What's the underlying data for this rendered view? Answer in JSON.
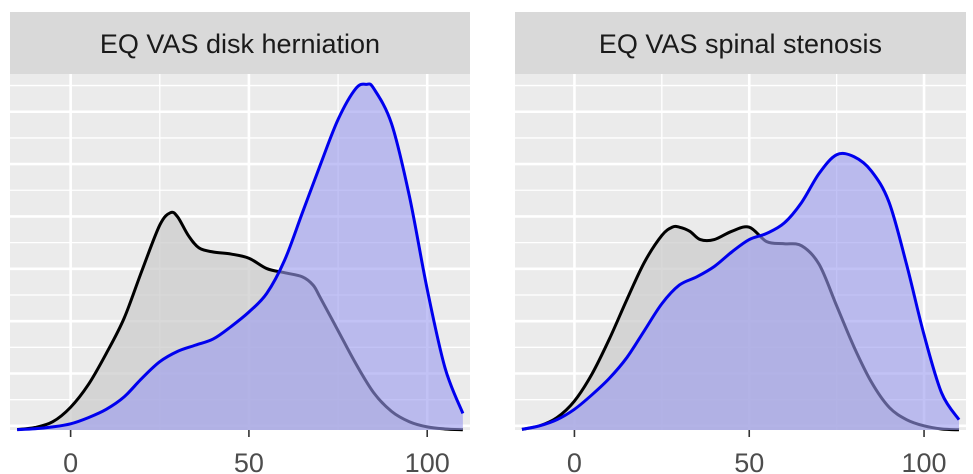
{
  "chart_data": [
    {
      "type": "area",
      "title": "EQ VAS disk herniation",
      "xlabel": "",
      "ylabel": "",
      "xlim": [
        -17,
        112
      ],
      "ylim": [
        0,
        0.0172
      ],
      "x_ticks": [
        0,
        50,
        100
      ],
      "x_tick_labels": [
        "0",
        "50",
        "100"
      ],
      "grid": true,
      "legend": "none",
      "series": [
        {
          "color": "#000000",
          "fill": "#cccccc",
          "x": [
            -15,
            -10,
            -5,
            0,
            5,
            10,
            15,
            20,
            25,
            28,
            30,
            33,
            36,
            40,
            45,
            50,
            55,
            60,
            65,
            68,
            70,
            75,
            80,
            85,
            90,
            95,
            100,
            105,
            110
          ],
          "y": [
            2e-05,
            0.00012,
            0.0004,
            0.0011,
            0.0022,
            0.0037,
            0.0054,
            0.0077,
            0.0099,
            0.0105,
            0.0103,
            0.0094,
            0.0088,
            0.0086,
            0.0085,
            0.0083,
            0.0078,
            0.0076,
            0.0074,
            0.007,
            0.0064,
            0.0048,
            0.0032,
            0.0018,
            0.0009,
            0.0004,
            0.00015,
            5e-05,
            1e-05
          ]
        },
        {
          "color": "#0000ee",
          "fill": "#9999ee",
          "x": [
            -15,
            -10,
            -5,
            0,
            5,
            10,
            15,
            20,
            25,
            30,
            35,
            40,
            45,
            50,
            55,
            60,
            65,
            70,
            75,
            80,
            83,
            85,
            90,
            95,
            100,
            105,
            110
          ],
          "y": [
            2e-05,
            6e-05,
            0.00015,
            0.0003,
            0.0006,
            0.001,
            0.0016,
            0.0025,
            0.0033,
            0.0038,
            0.0041,
            0.0044,
            0.005,
            0.0057,
            0.0066,
            0.0082,
            0.0105,
            0.0128,
            0.015,
            0.0165,
            0.0167,
            0.0165,
            0.0148,
            0.0113,
            0.0068,
            0.003,
            0.0008
          ]
        }
      ]
    },
    {
      "type": "area",
      "title": "EQ VAS spinal stenosis",
      "xlabel": "",
      "ylabel": "",
      "xlim": [
        -17,
        112
      ],
      "ylim": [
        0,
        0.0172
      ],
      "x_ticks": [
        0,
        50,
        100
      ],
      "x_tick_labels": [
        "0",
        "50",
        "100"
      ],
      "grid": true,
      "legend": "none",
      "series": [
        {
          "color": "#000000",
          "fill": "#cccccc",
          "x": [
            -15,
            -10,
            -5,
            0,
            5,
            10,
            15,
            20,
            25,
            28,
            30,
            33,
            36,
            40,
            45,
            50,
            55,
            60,
            65,
            70,
            75,
            80,
            85,
            90,
            95,
            100,
            105,
            110
          ],
          "y": [
            3e-05,
            0.0002,
            0.0006,
            0.0014,
            0.0027,
            0.0044,
            0.0063,
            0.0081,
            0.0094,
            0.0098,
            0.0098,
            0.0096,
            0.0092,
            0.0092,
            0.0096,
            0.0098,
            0.0091,
            0.009,
            0.0089,
            0.008,
            0.006,
            0.004,
            0.0023,
            0.0011,
            0.0005,
            0.0002,
            5e-05,
            1e-05
          ]
        },
        {
          "color": "#0000ee",
          "fill": "#9999ee",
          "x": [
            -15,
            -10,
            -5,
            0,
            5,
            10,
            15,
            20,
            25,
            30,
            35,
            40,
            45,
            50,
            55,
            60,
            65,
            70,
            75,
            80,
            85,
            90,
            95,
            100,
            105,
            110
          ],
          "y": [
            3e-05,
            0.0002,
            0.0005,
            0.001,
            0.0017,
            0.0025,
            0.0035,
            0.0048,
            0.0061,
            0.007,
            0.0074,
            0.0079,
            0.0086,
            0.0092,
            0.0095,
            0.01,
            0.011,
            0.0124,
            0.0133,
            0.0132,
            0.0125,
            0.011,
            0.008,
            0.0046,
            0.0018,
            0.0005
          ]
        }
      ]
    }
  ]
}
